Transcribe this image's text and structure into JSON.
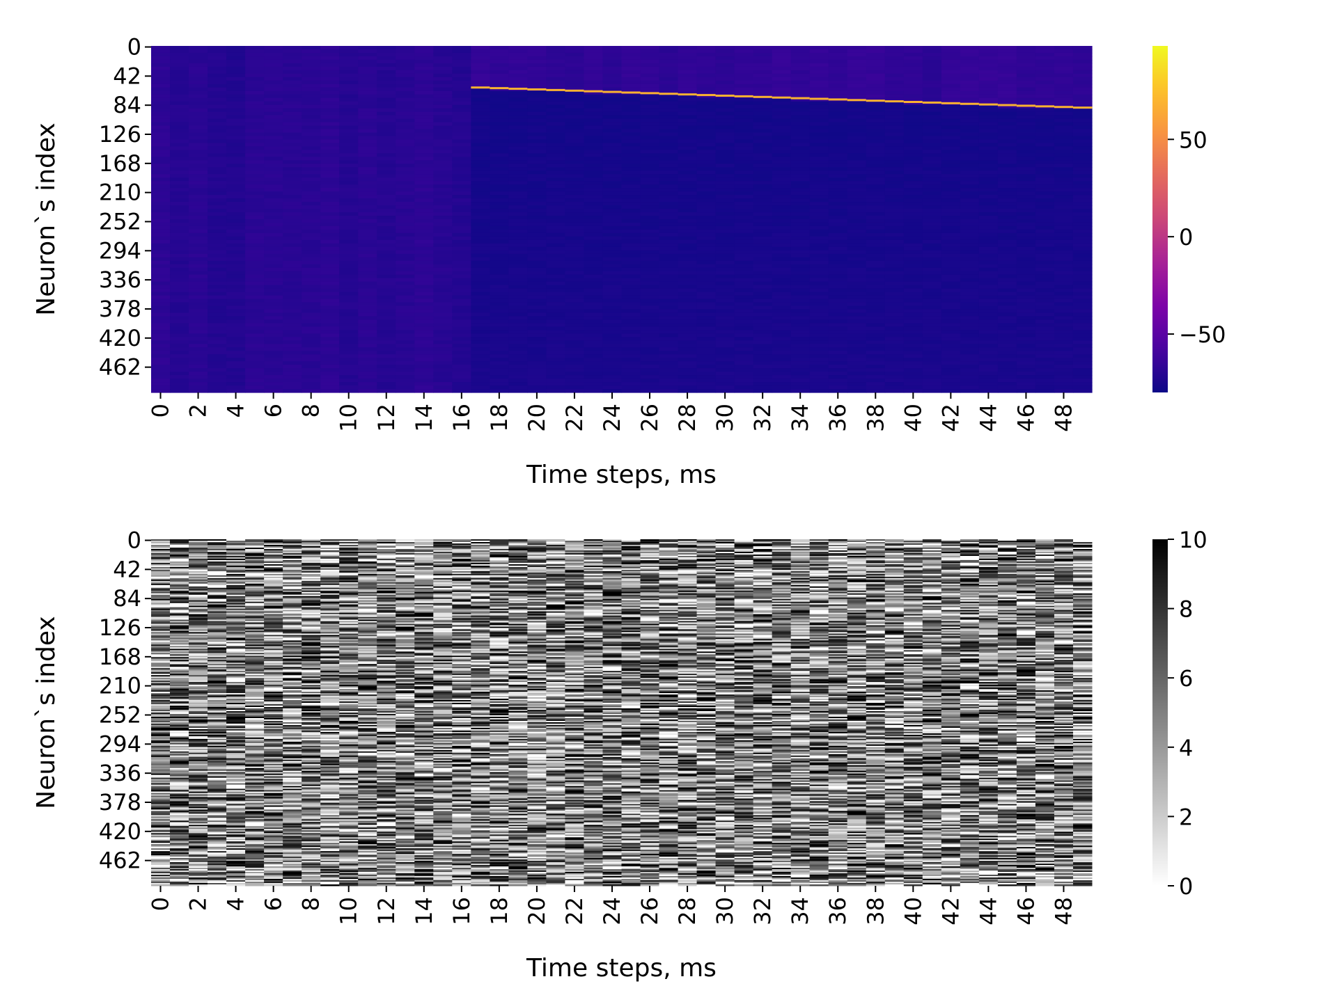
{
  "chart_data": [
    {
      "type": "heatmap",
      "title": "",
      "xlabel": "Time steps, ms",
      "ylabel": "Neuron`s index",
      "x_ticks": [
        "0",
        "2",
        "4",
        "6",
        "8",
        "10",
        "12",
        "14",
        "16",
        "18",
        "20",
        "22",
        "24",
        "26",
        "28",
        "30",
        "32",
        "34",
        "36",
        "38",
        "40",
        "42",
        "44",
        "46",
        "48"
      ],
      "y_ticks": [
        "0",
        "42",
        "84",
        "126",
        "168",
        "210",
        "252",
        "294",
        "336",
        "378",
        "420",
        "462"
      ],
      "n_time_steps": 50,
      "n_neurons": 500,
      "colormap": "plasma",
      "colorbar": {
        "ticks": [
          "50",
          "0",
          "−50"
        ],
        "range": [
          -80,
          98
        ]
      },
      "description_values": {
        "baseline": -70,
        "spike_onset_step": 17,
        "spike_front_neuron_start": 60,
        "spike_front_neuron_end": 89,
        "spike_peak": 98,
        "after_spike_level": -78
      }
    },
    {
      "type": "heatmap",
      "title": "",
      "xlabel": "Time steps, ms",
      "ylabel": "Neuron`s index",
      "x_ticks": [
        "0",
        "2",
        "4",
        "6",
        "8",
        "10",
        "12",
        "14",
        "16",
        "18",
        "20",
        "22",
        "24",
        "26",
        "28",
        "30",
        "32",
        "34",
        "36",
        "38",
        "40",
        "42",
        "44",
        "46",
        "48"
      ],
      "y_ticks": [
        "0",
        "42",
        "84",
        "126",
        "168",
        "210",
        "252",
        "294",
        "336",
        "378",
        "420",
        "462"
      ],
      "n_time_steps": 50,
      "n_neurons": 500,
      "colormap": "Greys",
      "colorbar": {
        "ticks": [
          "10",
          "8",
          "6",
          "4",
          "2",
          "0"
        ],
        "range": [
          0,
          10
        ]
      },
      "description_values": {
        "distribution": "uniform random integers 0-10"
      }
    }
  ]
}
